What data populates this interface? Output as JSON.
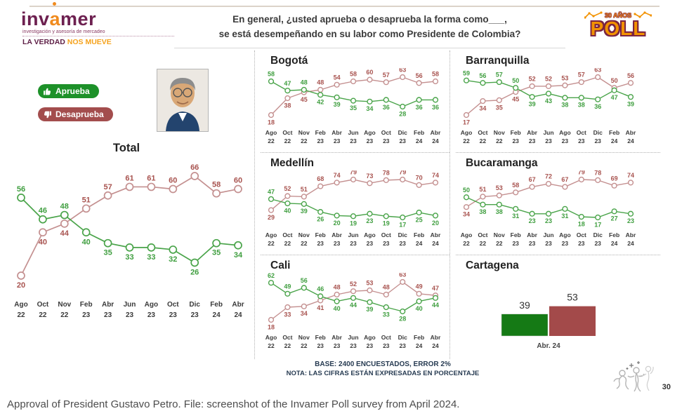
{
  "header": {
    "logo": {
      "brand_pre": "inv",
      "brand_mid": "a",
      "brand_post": "mer",
      "tagline": "investigación y asesoría de mercadeo",
      "motto_strong": "LA VERDAD",
      "motto_accent": "NOS MUEVE"
    },
    "question_line1": "En general, ¿usted aprueba o desaprueba la forma como___,",
    "question_line2": "se está desempeñando en su labor como Presidente de Colombia?",
    "poll_badge": {
      "years": "30 AÑOS",
      "title": "POLL"
    }
  },
  "legend": {
    "approve_label": "Aprueba",
    "disapprove_label": "Desaprueba"
  },
  "colors": {
    "approve_line": "#4aa44a",
    "approve_label": "#3f9e3f",
    "disapprove_line": "#c49090",
    "disapprove_label": "#a8534f",
    "approve_pill": "#1d9129",
    "disapprove_pill": "#a34d4d",
    "bar_green": "#157a15",
    "bar_red": "#a34a4a",
    "axis_text": "#3a3a3a"
  },
  "chart_data": [
    {
      "type": "line",
      "title": "Total",
      "categories": [
        "Ago 22",
        "Oct 22",
        "Nov 22",
        "Feb 23",
        "Abr 23",
        "Jun 23",
        "Ago 23",
        "Oct 23",
        "Dic 23",
        "Feb 24",
        "Abr 24"
      ],
      "series": [
        {
          "name": "Aprueba",
          "values": [
            56,
            46,
            48,
            40,
            35,
            33,
            33,
            32,
            26,
            35,
            34
          ]
        },
        {
          "name": "Desaprueba",
          "values": [
            20,
            40,
            44,
            51,
            57,
            61,
            61,
            60,
            66,
            58,
            60
          ]
        }
      ],
      "ylim": [
        0,
        100
      ]
    },
    {
      "type": "line",
      "title": "Bogotá",
      "categories": [
        "Ago 22",
        "Oct 22",
        "Nov 22",
        "Feb 23",
        "Abr 23",
        "Jun 23",
        "Ago 23",
        "Oct 23",
        "Dic 23",
        "Feb 24",
        "Abr 24"
      ],
      "series": [
        {
          "name": "Aprueba",
          "values": [
            58,
            47,
            48,
            42,
            39,
            35,
            34,
            36,
            28,
            36,
            36
          ]
        },
        {
          "name": "Desaprueba",
          "values": [
            18,
            38,
            45,
            48,
            54,
            58,
            60,
            57,
            63,
            56,
            58
          ]
        }
      ],
      "ylim": [
        0,
        100
      ]
    },
    {
      "type": "line",
      "title": "Medellín",
      "categories": [
        "Ago 22",
        "Oct 22",
        "Nov 22",
        "Feb 23",
        "Abr 23",
        "Jun 23",
        "Ago 23",
        "Oct 23",
        "Dic 23",
        "Feb 24",
        "Abr 24"
      ],
      "series": [
        {
          "name": "Aprueba",
          "values": [
            47,
            40,
            39,
            26,
            20,
            19,
            23,
            19,
            17,
            25,
            20
          ]
        },
        {
          "name": "Desaprueba",
          "values": [
            29,
            52,
            51,
            68,
            74,
            79,
            73,
            78,
            79,
            70,
            74
          ]
        }
      ],
      "ylim": [
        0,
        100
      ]
    },
    {
      "type": "line",
      "title": "Cali",
      "categories": [
        "Ago 22",
        "Oct 22",
        "Nov 22",
        "Feb 23",
        "Abr 23",
        "Jun 23",
        "Ago 23",
        "Oct 23",
        "Dic 23",
        "Feb 24",
        "Abr 24"
      ],
      "series": [
        {
          "name": "Aprueba",
          "values": [
            62,
            49,
            56,
            46,
            40,
            44,
            39,
            33,
            28,
            40,
            44
          ]
        },
        {
          "name": "Desaprueba",
          "values": [
            18,
            33,
            34,
            41,
            48,
            52,
            53,
            48,
            63,
            49,
            47
          ]
        }
      ],
      "ylim": [
        0,
        100
      ]
    },
    {
      "type": "line",
      "title": "Barranquilla",
      "categories": [
        "Ago 22",
        "Oct 22",
        "Nov 22",
        "Feb 23",
        "Abr 23",
        "Jun 23",
        "Ago 23",
        "Oct 23",
        "Dic 23",
        "Feb 24",
        "Abr 24"
      ],
      "series": [
        {
          "name": "Aprueba",
          "values": [
            59,
            56,
            57,
            50,
            39,
            43,
            38,
            38,
            36,
            47,
            39
          ]
        },
        {
          "name": "Desaprueba",
          "values": [
            17,
            34,
            35,
            45,
            52,
            52,
            53,
            57,
            63,
            50,
            56
          ]
        }
      ],
      "ylim": [
        0,
        100
      ]
    },
    {
      "type": "line",
      "title": "Bucaramanga",
      "categories": [
        "Ago 22",
        "Oct 22",
        "Nov 22",
        "Feb 23",
        "Abr 23",
        "Jun 23",
        "Ago 23",
        "Oct 23",
        "Dic 23",
        "Feb 24",
        "Abr 24"
      ],
      "series": [
        {
          "name": "Aprueba",
          "values": [
            50,
            38,
            38,
            31,
            23,
            23,
            31,
            18,
            17,
            27,
            23
          ]
        },
        {
          "name": "Desaprueba",
          "values": [
            34,
            51,
            53,
            58,
            67,
            72,
            67,
            79,
            78,
            69,
            74
          ]
        }
      ],
      "ylim": [
        0,
        100
      ]
    },
    {
      "type": "bar",
      "title": "Cartagena",
      "categories": [
        "Abr. 24"
      ],
      "series": [
        {
          "name": "Aprueba",
          "values": [
            39
          ]
        },
        {
          "name": "Desaprueba",
          "values": [
            53
          ]
        }
      ],
      "ylim": [
        0,
        100
      ]
    }
  ],
  "footer": {
    "base_note": "BASE: 2400 ENCUESTADOS, ERROR 2%",
    "nota": "NOTA: LAS CIFRAS ESTÁN EXPRESADAS EN PORCENTAJE",
    "page_number": "30"
  },
  "caption": "Approval of President Gustavo Petro. File: screenshot of the Invamer Poll survey from April 2024."
}
